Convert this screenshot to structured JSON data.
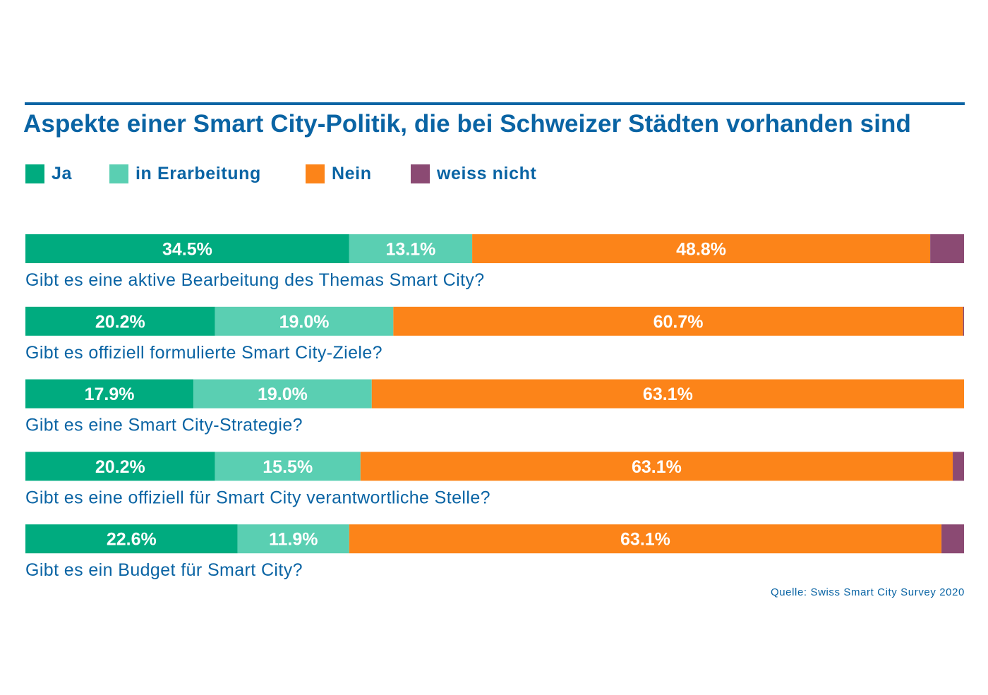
{
  "chart_data": {
    "type": "bar",
    "orientation": "horizontal",
    "stacked": true,
    "title": "Aspekte einer Smart City-Politik, die bei Schweizer Städten vorhanden sind",
    "legend_position": "top-left",
    "grid": false,
    "xlim": [
      0,
      100
    ],
    "categories": [
      "Gibt es eine aktive Bearbeitung des Themas Smart City?",
      "Gibt es offiziell formulierte Smart City-Ziele?",
      "Gibt es eine Smart City-Strategie?",
      "Gibt es eine offiziell für Smart City verantwortliche Stelle?",
      "Gibt es ein Budget für Smart City?"
    ],
    "series": [
      {
        "name": "Ja",
        "color": "#00ab7f",
        "values": [
          34.5,
          20.2,
          17.9,
          20.2,
          22.6
        ],
        "labels": [
          "34.5%",
          "20.2%",
          "17.9%",
          "20.2%",
          "22.6%"
        ]
      },
      {
        "name": "in Erarbeitung",
        "color": "#5acfb2",
        "values": [
          13.1,
          19.0,
          19.0,
          15.5,
          11.9
        ],
        "labels": [
          "13.1%",
          "19.0%",
          "19.0%",
          "15.5%",
          "11.9%"
        ]
      },
      {
        "name": "Nein",
        "color": "#fc8419",
        "values": [
          48.8,
          60.7,
          63.1,
          63.1,
          63.1
        ],
        "labels": [
          "48.8%",
          "60.7%",
          "63.1%",
          "63.1%",
          "63.1%"
        ]
      },
      {
        "name": "weiss nicht",
        "color": "#8b4a73",
        "values": [
          3.6,
          0.1,
          0.0,
          1.2,
          2.4
        ],
        "labels": [
          "",
          "",
          "",
          "",
          ""
        ]
      }
    ],
    "source": "Quelle: Swiss Smart City Survey 2020"
  }
}
